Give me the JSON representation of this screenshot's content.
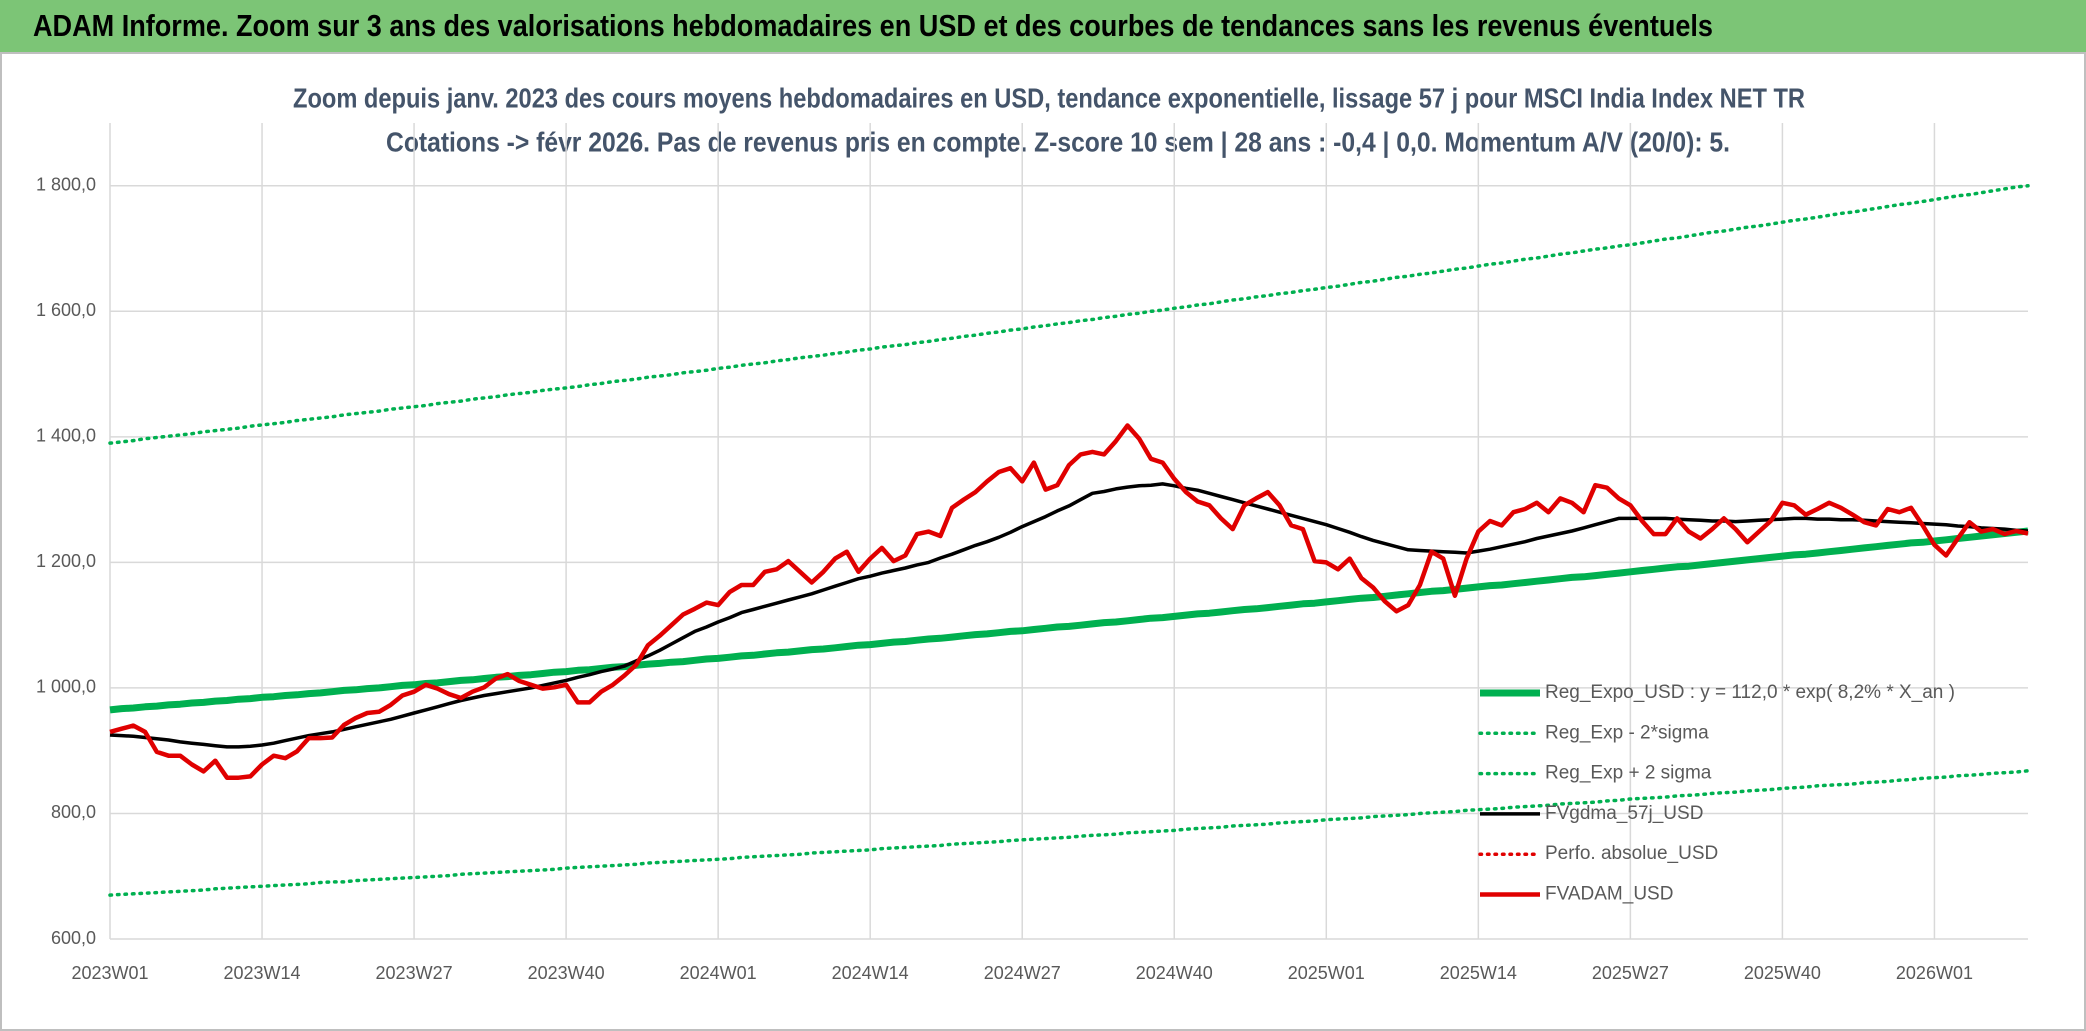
{
  "chart_data": {
    "type": "line",
    "header": "ADAM Informe. Zoom sur 3 ans des valorisations hebdomadaires en USD et des courbes de tendances sans les revenus éventuels",
    "title": "Zoom depuis janv. 2023 des cours moyens hebdomadaires en USD, tendance exponentielle, lissage 57 j pour MSCI India Index NET TR",
    "subtitle": "Cotations -> févr 2026. Pas de revenus pris en compte. Z-score 10 sem | 28 ans : -0,4 | 0,0. Momentum A/V (20/0): 5.",
    "categories": [
      "2023W01",
      null,
      null,
      null,
      null,
      null,
      null,
      null,
      null,
      null,
      null,
      null,
      null,
      "2023W14",
      null,
      null,
      null,
      null,
      null,
      null,
      null,
      null,
      null,
      null,
      null,
      null,
      "2023W27",
      null,
      null,
      null,
      null,
      null,
      null,
      null,
      null,
      null,
      null,
      null,
      null,
      "2023W40",
      null,
      null,
      null,
      null,
      null,
      null,
      null,
      null,
      null,
      null,
      null,
      null,
      "2024W01",
      null,
      null,
      null,
      null,
      null,
      null,
      null,
      null,
      null,
      null,
      null,
      null,
      "2024W14",
      null,
      null,
      null,
      null,
      null,
      null,
      null,
      null,
      null,
      null,
      null,
      null,
      "2024W27",
      null,
      null,
      null,
      null,
      null,
      null,
      null,
      null,
      null,
      null,
      null,
      null,
      "2024W40",
      null,
      null,
      null,
      null,
      null,
      null,
      null,
      null,
      null,
      null,
      null,
      null,
      "2025W01",
      null,
      null,
      null,
      null,
      null,
      null,
      null,
      null,
      null,
      null,
      null,
      null,
      "2025W14",
      null,
      null,
      null,
      null,
      null,
      null,
      null,
      null,
      null,
      null,
      null,
      null,
      "2025W27",
      null,
      null,
      null,
      null,
      null,
      null,
      null,
      null,
      null,
      null,
      null,
      null,
      "2025W40",
      null,
      null,
      null,
      null,
      null,
      null,
      null,
      null,
      null,
      null,
      null,
      null,
      "2026W01",
      null,
      null,
      null,
      null,
      null,
      null,
      null,
      null
    ],
    "ylim": [
      600,
      1900
    ],
    "yticks": [
      {
        "value": 600,
        "label": "600,0"
      },
      {
        "value": 800,
        "label": "800,0"
      },
      {
        "value": 1000,
        "label": "1 000,0"
      },
      {
        "value": 1200,
        "label": "1 200,0"
      },
      {
        "value": 1400,
        "label": "1 400,0"
      },
      {
        "value": 1600,
        "label": "1 600,0"
      },
      {
        "value": 1800,
        "label": "1 800,0"
      }
    ],
    "grid": true,
    "legend": "right",
    "series": [
      {
        "name": "Reg_Expo_USD : y = 112,0 * exp( 8,2% *  X_an )",
        "color": "#00b050",
        "style": "solid",
        "values": [
          965,
          967,
          968,
          970,
          971,
          973,
          974,
          976,
          977,
          979,
          980,
          982,
          983,
          985,
          986,
          988,
          989,
          991,
          992,
          994,
          996,
          997,
          999,
          1000,
          1002,
          1004,
          1005,
          1007,
          1008,
          1010,
          1012,
          1013,
          1015,
          1017,
          1018,
          1020,
          1021,
          1023,
          1025,
          1026,
          1028,
          1029,
          1031,
          1033,
          1034,
          1036,
          1038,
          1039,
          1041,
          1042,
          1044,
          1046,
          1047,
          1049,
          1051,
          1052,
          1054,
          1056,
          1057,
          1059,
          1061,
          1062,
          1064,
          1066,
          1068,
          1069,
          1071,
          1073,
          1074,
          1076,
          1078,
          1079,
          1081,
          1083,
          1085,
          1086,
          1088,
          1090,
          1091,
          1093,
          1095,
          1097,
          1098,
          1100,
          1102,
          1104,
          1105,
          1107,
          1109,
          1111,
          1112,
          1114,
          1116,
          1118,
          1119,
          1121,
          1123,
          1125,
          1126,
          1128,
          1130,
          1132,
          1134,
          1135,
          1137,
          1139,
          1141,
          1143,
          1144,
          1146,
          1148,
          1150,
          1152,
          1154,
          1155,
          1157,
          1159,
          1161,
          1163,
          1164,
          1166,
          1168,
          1170,
          1172,
          1174,
          1176,
          1177,
          1179,
          1181,
          1183,
          1185,
          1187,
          1189,
          1191,
          1193,
          1194,
          1196,
          1198,
          1200,
          1202,
          1204,
          1206,
          1208,
          1210,
          1212,
          1213,
          1215,
          1217,
          1219,
          1221,
          1223,
          1225,
          1227,
          1229,
          1231,
          1232,
          1234,
          1236,
          1238,
          1240,
          1242,
          1244,
          1246,
          1248,
          1250
        ]
      },
      {
        "name": "Reg_Exp - 2*sigma",
        "color": "#00b050",
        "style": "dotted",
        "values": [
          670,
          671,
          672,
          673,
          674,
          675,
          676,
          677,
          678,
          680,
          681,
          682,
          683,
          684,
          685,
          686,
          687,
          688,
          690,
          691,
          691,
          693,
          694,
          695,
          696,
          697,
          698,
          699,
          700,
          701,
          703,
          704,
          705,
          706,
          707,
          708,
          709,
          710,
          711,
          713,
          714,
          715,
          716,
          717,
          718,
          719,
          721,
          722,
          723,
          724,
          725,
          726,
          727,
          728,
          730,
          731,
          732,
          733,
          734,
          735,
          737,
          738,
          739,
          740,
          741,
          742,
          744,
          745,
          746,
          747,
          748,
          749,
          751,
          752,
          753,
          754,
          755,
          757,
          758,
          759,
          760,
          761,
          762,
          764,
          765,
          766,
          767,
          769,
          770,
          771,
          772,
          773,
          775,
          776,
          777,
          778,
          780,
          781,
          782,
          783,
          785,
          786,
          787,
          788,
          790,
          791,
          792,
          793,
          795,
          796,
          797,
          798,
          800,
          801,
          802,
          803,
          805,
          806,
          807,
          808,
          810,
          811,
          812,
          813,
          815,
          816,
          817,
          818,
          820,
          821,
          823,
          824,
          825,
          826,
          828,
          829,
          830,
          832,
          833,
          834,
          836,
          837,
          838,
          840,
          841,
          842,
          844,
          845,
          846,
          847,
          849,
          850,
          851,
          853,
          854,
          856,
          857,
          858,
          860,
          861,
          862,
          864,
          865,
          866,
          868
        ]
      },
      {
        "name": "Reg_Exp + 2 sigma",
        "color": "#00b050",
        "style": "dotted",
        "values": [
          1390,
          1392,
          1394,
          1397,
          1399,
          1401,
          1403,
          1405,
          1408,
          1410,
          1412,
          1414,
          1417,
          1419,
          1421,
          1423,
          1426,
          1428,
          1430,
          1432,
          1435,
          1437,
          1439,
          1441,
          1444,
          1446,
          1448,
          1450,
          1453,
          1455,
          1457,
          1460,
          1462,
          1464,
          1467,
          1469,
          1471,
          1474,
          1476,
          1478,
          1480,
          1483,
          1485,
          1488,
          1490,
          1492,
          1495,
          1497,
          1499,
          1502,
          1504,
          1506,
          1509,
          1511,
          1514,
          1516,
          1518,
          1521,
          1523,
          1526,
          1528,
          1530,
          1533,
          1535,
          1538,
          1540,
          1543,
          1545,
          1547,
          1550,
          1552,
          1555,
          1557,
          1560,
          1562,
          1565,
          1567,
          1570,
          1572,
          1575,
          1577,
          1580,
          1582,
          1585,
          1587,
          1590,
          1592,
          1595,
          1597,
          1600,
          1602,
          1605,
          1607,
          1610,
          1612,
          1615,
          1618,
          1620,
          1623,
          1625,
          1628,
          1630,
          1633,
          1635,
          1638,
          1640,
          1643,
          1646,
          1648,
          1651,
          1654,
          1656,
          1659,
          1661,
          1664,
          1667,
          1669,
          1672,
          1675,
          1677,
          1680,
          1683,
          1685,
          1688,
          1691,
          1693,
          1696,
          1699,
          1701,
          1704,
          1706,
          1709,
          1712,
          1715,
          1717,
          1720,
          1723,
          1726,
          1728,
          1731,
          1734,
          1736,
          1739,
          1742,
          1745,
          1747,
          1750,
          1753,
          1756,
          1758,
          1761,
          1764,
          1767,
          1770,
          1772,
          1775,
          1778,
          1781,
          1784,
          1786,
          1789,
          1792,
          1795,
          1798,
          1800
        ]
      },
      {
        "name": "FVgdma_57j_USD",
        "color": "#000000",
        "style": "solid",
        "values": [
          925,
          924,
          923,
          921,
          919,
          917,
          914,
          912,
          910,
          908,
          906,
          906,
          907,
          909,
          912,
          916,
          920,
          924,
          927,
          930,
          934,
          938,
          942,
          946,
          950,
          955,
          960,
          965,
          970,
          975,
          980,
          984,
          988,
          991,
          994,
          997,
          1000,
          1004,
          1008,
          1012,
          1017,
          1021,
          1026,
          1030,
          1035,
          1043,
          1051,
          1060,
          1070,
          1080,
          1090,
          1097,
          1105,
          1112,
          1120,
          1125,
          1130,
          1135,
          1140,
          1145,
          1150,
          1156,
          1162,
          1168,
          1174,
          1178,
          1183,
          1187,
          1191,
          1196,
          1200,
          1207,
          1213,
          1220,
          1227,
          1233,
          1240,
          1248,
          1257,
          1265,
          1273,
          1282,
          1290,
          1300,
          1310,
          1313,
          1317,
          1320,
          1322,
          1323,
          1325,
          1322,
          1318,
          1315,
          1310,
          1305,
          1300,
          1295,
          1290,
          1285,
          1280,
          1275,
          1270,
          1265,
          1260,
          1254,
          1248,
          1241,
          1235,
          1230,
          1225,
          1220,
          1219,
          1218,
          1217,
          1216,
          1215,
          1218,
          1221,
          1225,
          1229,
          1233,
          1238,
          1242,
          1246,
          1250,
          1255,
          1260,
          1265,
          1270,
          1270,
          1270,
          1270,
          1270,
          1269,
          1268,
          1267,
          1266,
          1266,
          1265,
          1266,
          1267,
          1268,
          1269,
          1270,
          1270,
          1269,
          1269,
          1268,
          1268,
          1267,
          1266,
          1265,
          1264,
          1263,
          1262,
          1261,
          1260,
          1258,
          1257,
          1255,
          1254,
          1253,
          1251,
          1250
        ]
      },
      {
        "name": "Perfo. absolue_USD",
        "color": "#e00000",
        "style": "dotted",
        "values": [
          null,
          null,
          null,
          null,
          null,
          null,
          null,
          null,
          null,
          null,
          null,
          null,
          null,
          null,
          null,
          null,
          null,
          null,
          null,
          null,
          null,
          null,
          null,
          null,
          null,
          null,
          null,
          null,
          null,
          null,
          null,
          null,
          null,
          null,
          null,
          null,
          null,
          null,
          null,
          null,
          null,
          null,
          null,
          null,
          null,
          null,
          null,
          null,
          null,
          null,
          null,
          null,
          null,
          null,
          null,
          null,
          null,
          null,
          null,
          null,
          null,
          null,
          null,
          null,
          null,
          null,
          null,
          null,
          null,
          null,
          null,
          null,
          null,
          null,
          null,
          null,
          null,
          null,
          null,
          null,
          null,
          null,
          null,
          null,
          null,
          null,
          null,
          null,
          null,
          null,
          null,
          null,
          null,
          null,
          null,
          null,
          null,
          null,
          null,
          null,
          null,
          null,
          null,
          null,
          null,
          null,
          null,
          null,
          null,
          null,
          null,
          null,
          null,
          null,
          null,
          null,
          null,
          null,
          null,
          null,
          null,
          null,
          null,
          null,
          null,
          null,
          null,
          null,
          null,
          null,
          null,
          null,
          null,
          null,
          null,
          null,
          null,
          null,
          null,
          null,
          null,
          null,
          null,
          null,
          null,
          null,
          null,
          null,
          null,
          null,
          null,
          null,
          null,
          null,
          null,
          null,
          null,
          null,
          null,
          null,
          null,
          null,
          null,
          null,
          null
        ]
      },
      {
        "name": "FVADAM_USD",
        "color": "#e00000",
        "style": "solid",
        "values": [
          930,
          935,
          940,
          930,
          898,
          892,
          892,
          878,
          867,
          884,
          857,
          857,
          859,
          878,
          892,
          888,
          899,
          920,
          920,
          921,
          941,
          952,
          960,
          962,
          973,
          988,
          994,
          1005,
          999,
          990,
          984,
          994,
          1001,
          1015,
          1022,
          1011,
          1005,
          999,
          1001,
          1005,
          977,
          977,
          994,
          1005,
          1020,
          1037,
          1068,
          1083,
          1100,
          1117,
          1126,
          1136,
          1132,
          1153,
          1164,
          1164,
          1185,
          1189,
          1202,
          1185,
          1168,
          1185,
          1206,
          1217,
          1185,
          1206,
          1223,
          1202,
          1211,
          1245,
          1249,
          1242,
          1287,
          1300,
          1312,
          1329,
          1344,
          1350,
          1329,
          1359,
          1316,
          1323,
          1355,
          1372,
          1376,
          1372,
          1393,
          1418,
          1397,
          1365,
          1359,
          1333,
          1312,
          1297,
          1291,
          1270,
          1253,
          1291,
          1302,
          1312,
          1291,
          1259,
          1253,
          1202,
          1200,
          1189,
          1206,
          1175,
          1160,
          1138,
          1122,
          1132,
          1164,
          1217,
          1206,
          1147,
          1206,
          1249,
          1266,
          1259,
          1280,
          1285,
          1295,
          1280,
          1302,
          1295,
          1280,
          1323,
          1319,
          1302,
          1291,
          1266,
          1245,
          1245,
          1270,
          1249,
          1238,
          1253,
          1270,
          1253,
          1232,
          1249,
          1266,
          1295,
          1291,
          1276,
          1285,
          1295,
          1287,
          1276,
          1264,
          1259,
          1285,
          1280,
          1287,
          1259,
          1228,
          1211,
          1238,
          1264,
          1249,
          1253,
          1245,
          1250,
          1246
        ]
      }
    ]
  }
}
